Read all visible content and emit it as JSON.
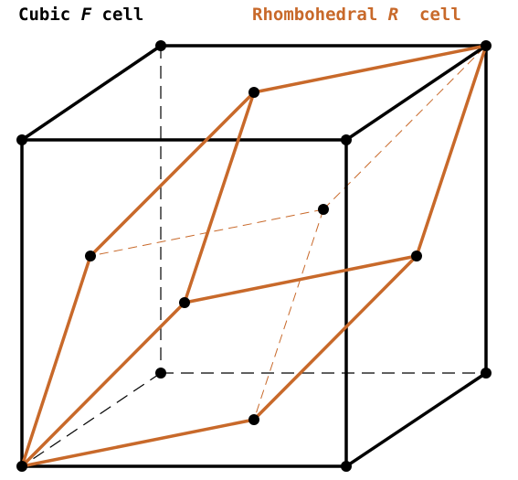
{
  "labels": {
    "cubic": {
      "prefix": "Cubic ",
      "symbol": "F",
      "suffix": " cell"
    },
    "rhombohedral": {
      "prefix": "Rhombohedral ",
      "symbol": "R",
      "suffix": "  cell"
    }
  },
  "colors": {
    "cubic": "#000000",
    "rhombohedral": "#c8692a"
  }
}
